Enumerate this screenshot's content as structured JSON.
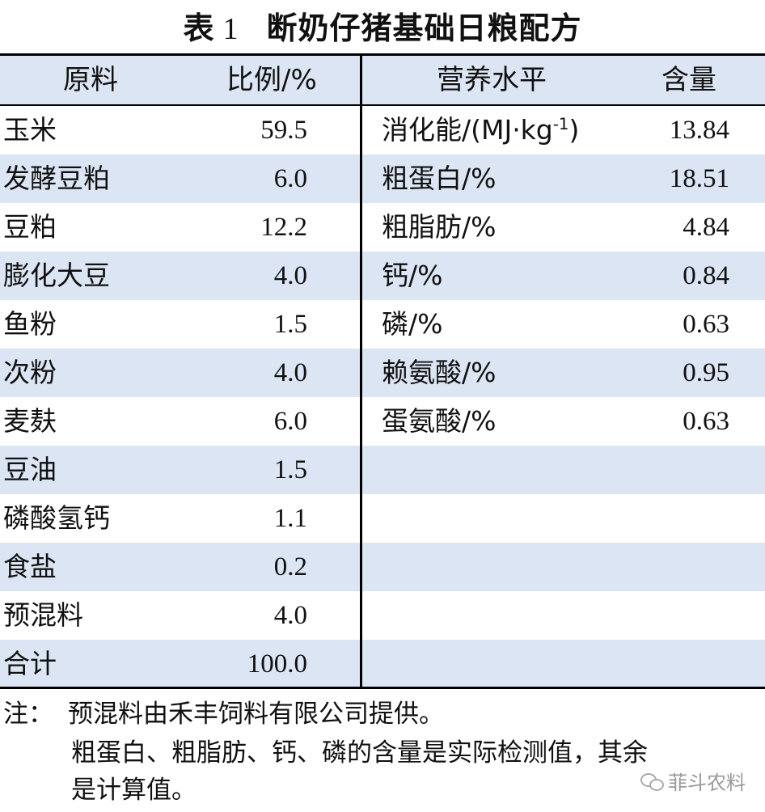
{
  "title": {
    "label": "表",
    "number": "1",
    "text": "断奶仔猪基础日粮配方"
  },
  "headers": {
    "ingredient": "原料",
    "ratio": "比例/%",
    "nutrient": "营养水平",
    "content": "含量"
  },
  "ingredients": [
    {
      "name": "玉米",
      "value": "59.5"
    },
    {
      "name": "发酵豆粕",
      "value": "6.0"
    },
    {
      "name": "豆粕",
      "value": "12.2"
    },
    {
      "name": "膨化大豆",
      "value": "4.0"
    },
    {
      "name": "鱼粉",
      "value": "1.5"
    },
    {
      "name": "次粉",
      "value": "4.0"
    },
    {
      "name": "麦麸",
      "value": "6.0"
    },
    {
      "name": "豆油",
      "value": "1.5"
    },
    {
      "name": "磷酸氢钙",
      "value": "1.1"
    },
    {
      "name": "食盐",
      "value": "0.2"
    },
    {
      "name": "预混料",
      "value": "4.0"
    },
    {
      "name": "合计",
      "value": "100.0"
    }
  ],
  "nutrients": [
    {
      "name": "消化能/(MJ·kg",
      "sup": "-1",
      "suffix": ")",
      "value": "13.84"
    },
    {
      "name": "粗蛋白/%",
      "value": "18.51"
    },
    {
      "name": "粗脂肪/%",
      "value": "4.84"
    },
    {
      "name": "钙/%",
      "value": "0.84"
    },
    {
      "name": "磷/%",
      "value": "0.63"
    },
    {
      "name": "赖氨酸/%",
      "value": "0.95"
    },
    {
      "name": "蛋氨酸/%",
      "value": "0.63"
    }
  ],
  "notes": {
    "prefix": "注：",
    "line1": "预混料由禾丰饲料有限公司提供。",
    "line2": "粗蛋白、粗脂肪、钙、磷的含量是实际检测值，其余",
    "line3": "是计算值。"
  },
  "watermark": {
    "text": "菲斗农料",
    "icon": "wechat-icon"
  },
  "colors": {
    "band": "#dbe5f3",
    "rule": "#000000"
  }
}
